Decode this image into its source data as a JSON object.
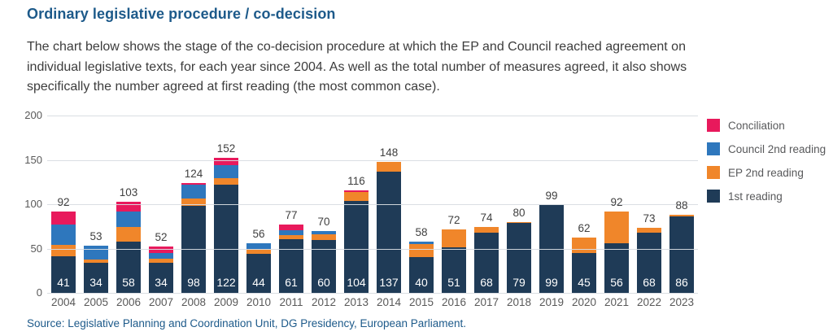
{
  "title": "Ordinary legislative procedure / co-decision",
  "description": [
    "The chart below shows the stage of the co-decision procedure at which the EP and Council reached agreement on",
    "individual legislative texts, for each year since 2004. As well as the total number of measures agreed, it also shows",
    "specifically the number agreed at first reading (the most common case)."
  ],
  "source": "Source: Legislative Planning and Coordination Unit, DG Presidency, European Parliament.",
  "colors": {
    "title_blue": "#1d5a8a",
    "body_text": "#3c3c3c",
    "axis_text": "#595959",
    "gridline": "#d8dce1",
    "first_reading": "#1f3b57",
    "ep_2nd_reading": "#f0862a",
    "council_2nd_reading": "#2e77bd",
    "conciliation": "#e8195c"
  },
  "legend": {
    "items": [
      {
        "label": "Conciliation",
        "color": "#e8195c"
      },
      {
        "label": "Council 2nd reading",
        "color": "#2e77bd"
      },
      {
        "label": "EP 2nd reading",
        "color": "#f0862a"
      },
      {
        "label": "1st reading",
        "color": "#1f3b57"
      }
    ]
  },
  "chart_data": {
    "type": "bar",
    "subtype": "stacked-vertical",
    "categories": [
      "2004",
      "2005",
      "2006",
      "2007",
      "2008",
      "2009",
      "2010",
      "2011",
      "2012",
      "2013",
      "2014",
      "2015",
      "2016",
      "2017",
      "2018",
      "2019",
      "2020",
      "2021",
      "2022",
      "2023"
    ],
    "series": [
      {
        "name": "1st reading",
        "color": "#1f3b57",
        "values": [
          41,
          34,
          58,
          34,
          98,
          122,
          44,
          61,
          60,
          104,
          137,
          40,
          51,
          68,
          79,
          99,
          45,
          56,
          68,
          86
        ]
      },
      {
        "name": "EP 2nd reading",
        "color": "#f0862a",
        "values": [
          13,
          4,
          16,
          5,
          8,
          7,
          6,
          4,
          6,
          10,
          11,
          15,
          21,
          6,
          1,
          0,
          17,
          36,
          5,
          2
        ]
      },
      {
        "name": "Council 2nd reading",
        "color": "#2e77bd",
        "values": [
          23,
          15,
          18,
          6,
          16,
          15,
          6,
          6,
          4,
          0,
          0,
          3,
          0,
          0,
          0,
          0,
          0,
          0,
          0,
          0
        ]
      },
      {
        "name": "Conciliation",
        "color": "#e8195c",
        "values": [
          15,
          0,
          11,
          7,
          2,
          8,
          0,
          6,
          0,
          2,
          0,
          0,
          0,
          0,
          0,
          0,
          0,
          0,
          0,
          0
        ]
      }
    ],
    "totals": [
      92,
      53,
      103,
      52,
      124,
      152,
      56,
      77,
      70,
      116,
      148,
      58,
      72,
      74,
      80,
      99,
      62,
      92,
      73,
      88
    ],
    "bar_value_labels": [
      41,
      34,
      58,
      34,
      98,
      122,
      44,
      61,
      60,
      104,
      137,
      40,
      51,
      68,
      79,
      99,
      45,
      56,
      68,
      86
    ],
    "yticks": [
      0,
      50,
      100,
      150,
      200
    ],
    "ylim": [
      0,
      200
    ],
    "grid": true,
    "legend_position": "right",
    "xlabel": "",
    "ylabel": ""
  }
}
